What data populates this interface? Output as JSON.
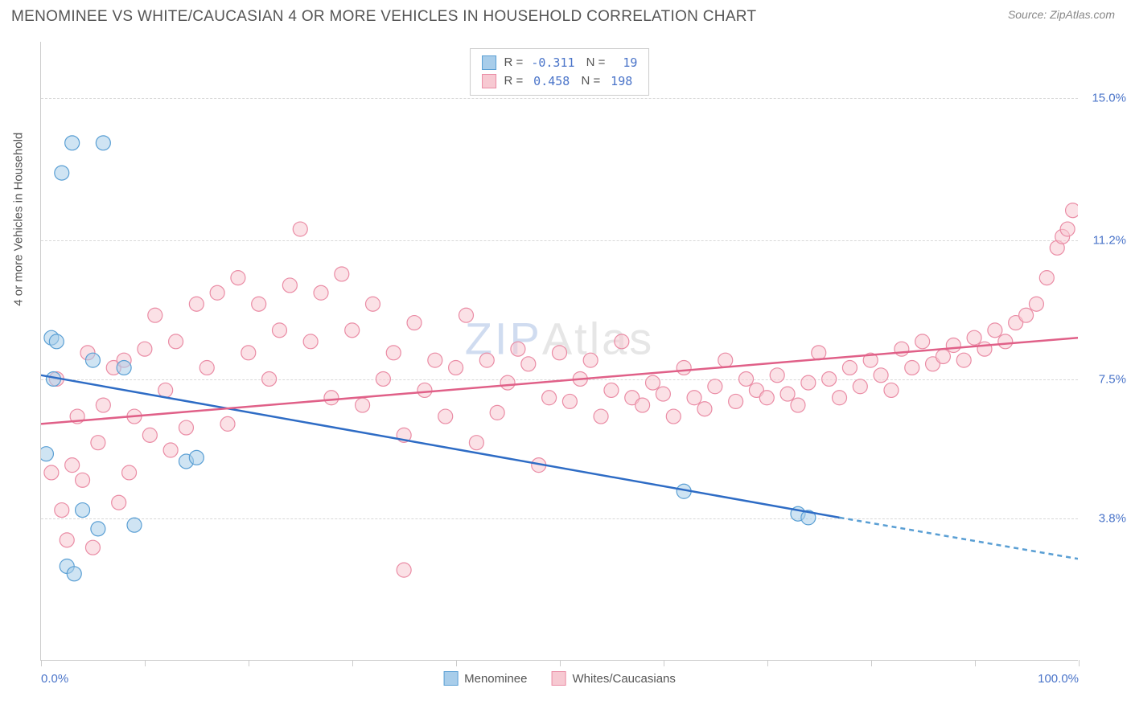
{
  "title": "MENOMINEE VS WHITE/CAUCASIAN 4 OR MORE VEHICLES IN HOUSEHOLD CORRELATION CHART",
  "source": "Source: ZipAtlas.com",
  "watermark_a": "ZIP",
  "watermark_b": "Atlas",
  "chart": {
    "type": "scatter",
    "ylabel": "4 or more Vehicles in Household",
    "xlim": [
      0,
      100
    ],
    "ylim": [
      0,
      16.5
    ],
    "yticks": [
      {
        "v": 3.8,
        "label": "3.8%"
      },
      {
        "v": 7.5,
        "label": "7.5%"
      },
      {
        "v": 11.2,
        "label": "11.2%"
      },
      {
        "v": 15.0,
        "label": "15.0%"
      }
    ],
    "xticks_major": [
      0,
      10,
      20,
      30,
      40,
      50,
      60,
      70,
      80,
      90,
      100
    ],
    "xticks_labeled": [
      {
        "v": 0,
        "label": "0.0%"
      },
      {
        "v": 100,
        "label": "100.0%"
      }
    ],
    "background_color": "#ffffff",
    "grid_color": "#d8d8d8",
    "series": [
      {
        "name": "Menominee",
        "color_fill": "#a8cdea",
        "color_stroke": "#5a9fd4",
        "marker_r": 9,
        "R": "-0.311",
        "N": "19",
        "trend": {
          "x1": 0,
          "y1": 7.6,
          "x2": 77,
          "y2": 3.8,
          "solid": true,
          "color": "#2e6cc5"
        },
        "trend_ext": {
          "x1": 77,
          "y1": 3.8,
          "x2": 100,
          "y2": 2.7,
          "solid": false,
          "color": "#5a9fd4"
        },
        "points": [
          [
            0.5,
            5.5
          ],
          [
            1,
            8.6
          ],
          [
            1.2,
            7.5
          ],
          [
            1.5,
            8.5
          ],
          [
            2,
            13.0
          ],
          [
            2.5,
            2.5
          ],
          [
            3,
            13.8
          ],
          [
            3.2,
            2.3
          ],
          [
            4,
            4.0
          ],
          [
            5,
            8.0
          ],
          [
            5.5,
            3.5
          ],
          [
            6,
            13.8
          ],
          [
            8,
            7.8
          ],
          [
            9,
            3.6
          ],
          [
            14,
            5.3
          ],
          [
            15,
            5.4
          ],
          [
            62,
            4.5
          ],
          [
            73,
            3.9
          ],
          [
            74,
            3.8
          ]
        ]
      },
      {
        "name": "Whites/Caucasians",
        "color_fill": "#f7c9d2",
        "color_stroke": "#ea8ca5",
        "marker_r": 9,
        "R": "0.458",
        "N": "198",
        "trend": {
          "x1": 0,
          "y1": 6.3,
          "x2": 100,
          "y2": 8.6,
          "solid": true,
          "color": "#e06088"
        },
        "points": [
          [
            1,
            5.0
          ],
          [
            1.5,
            7.5
          ],
          [
            2,
            4.0
          ],
          [
            2.5,
            3.2
          ],
          [
            3,
            5.2
          ],
          [
            3.5,
            6.5
          ],
          [
            4,
            4.8
          ],
          [
            4.5,
            8.2
          ],
          [
            5,
            3.0
          ],
          [
            5.5,
            5.8
          ],
          [
            6,
            6.8
          ],
          [
            7,
            7.8
          ],
          [
            7.5,
            4.2
          ],
          [
            8,
            8.0
          ],
          [
            8.5,
            5.0
          ],
          [
            9,
            6.5
          ],
          [
            10,
            8.3
          ],
          [
            10.5,
            6.0
          ],
          [
            11,
            9.2
          ],
          [
            12,
            7.2
          ],
          [
            12.5,
            5.6
          ],
          [
            13,
            8.5
          ],
          [
            14,
            6.2
          ],
          [
            15,
            9.5
          ],
          [
            16,
            7.8
          ],
          [
            17,
            9.8
          ],
          [
            18,
            6.3
          ],
          [
            19,
            10.2
          ],
          [
            20,
            8.2
          ],
          [
            21,
            9.5
          ],
          [
            22,
            7.5
          ],
          [
            23,
            8.8
          ],
          [
            24,
            10.0
          ],
          [
            25,
            11.5
          ],
          [
            26,
            8.5
          ],
          [
            27,
            9.8
          ],
          [
            28,
            7.0
          ],
          [
            29,
            10.3
          ],
          [
            30,
            8.8
          ],
          [
            31,
            6.8
          ],
          [
            32,
            9.5
          ],
          [
            33,
            7.5
          ],
          [
            34,
            8.2
          ],
          [
            35,
            2.4
          ],
          [
            35,
            6.0
          ],
          [
            36,
            9.0
          ],
          [
            37,
            7.2
          ],
          [
            38,
            8.0
          ],
          [
            39,
            6.5
          ],
          [
            40,
            7.8
          ],
          [
            41,
            9.2
          ],
          [
            42,
            5.8
          ],
          [
            43,
            8.0
          ],
          [
            44,
            6.6
          ],
          [
            45,
            7.4
          ],
          [
            46,
            8.3
          ],
          [
            47,
            7.9
          ],
          [
            48,
            5.2
          ],
          [
            49,
            7.0
          ],
          [
            50,
            8.2
          ],
          [
            51,
            6.9
          ],
          [
            52,
            7.5
          ],
          [
            53,
            8.0
          ],
          [
            54,
            6.5
          ],
          [
            55,
            7.2
          ],
          [
            56,
            8.5
          ],
          [
            57,
            7.0
          ],
          [
            58,
            6.8
          ],
          [
            59,
            7.4
          ],
          [
            60,
            7.1
          ],
          [
            61,
            6.5
          ],
          [
            62,
            7.8
          ],
          [
            63,
            7.0
          ],
          [
            64,
            6.7
          ],
          [
            65,
            7.3
          ],
          [
            66,
            8.0
          ],
          [
            67,
            6.9
          ],
          [
            68,
            7.5
          ],
          [
            69,
            7.2
          ],
          [
            70,
            7.0
          ],
          [
            71,
            7.6
          ],
          [
            72,
            7.1
          ],
          [
            73,
            6.8
          ],
          [
            74,
            7.4
          ],
          [
            75,
            8.2
          ],
          [
            76,
            7.5
          ],
          [
            77,
            7.0
          ],
          [
            78,
            7.8
          ],
          [
            79,
            7.3
          ],
          [
            80,
            8.0
          ],
          [
            81,
            7.6
          ],
          [
            82,
            7.2
          ],
          [
            83,
            8.3
          ],
          [
            84,
            7.8
          ],
          [
            85,
            8.5
          ],
          [
            86,
            7.9
          ],
          [
            87,
            8.1
          ],
          [
            88,
            8.4
          ],
          [
            89,
            8.0
          ],
          [
            90,
            8.6
          ],
          [
            91,
            8.3
          ],
          [
            92,
            8.8
          ],
          [
            93,
            8.5
          ],
          [
            94,
            9.0
          ],
          [
            95,
            9.2
          ],
          [
            96,
            9.5
          ],
          [
            97,
            10.2
          ],
          [
            98,
            11.0
          ],
          [
            98.5,
            11.3
          ],
          [
            99,
            11.5
          ],
          [
            99.5,
            12.0
          ]
        ]
      }
    ],
    "legend_bottom": [
      {
        "label": "Menominee",
        "fill": "#a8cdea",
        "stroke": "#5a9fd4"
      },
      {
        "label": "Whites/Caucasians",
        "fill": "#f7c9d2",
        "stroke": "#ea8ca5"
      }
    ]
  }
}
